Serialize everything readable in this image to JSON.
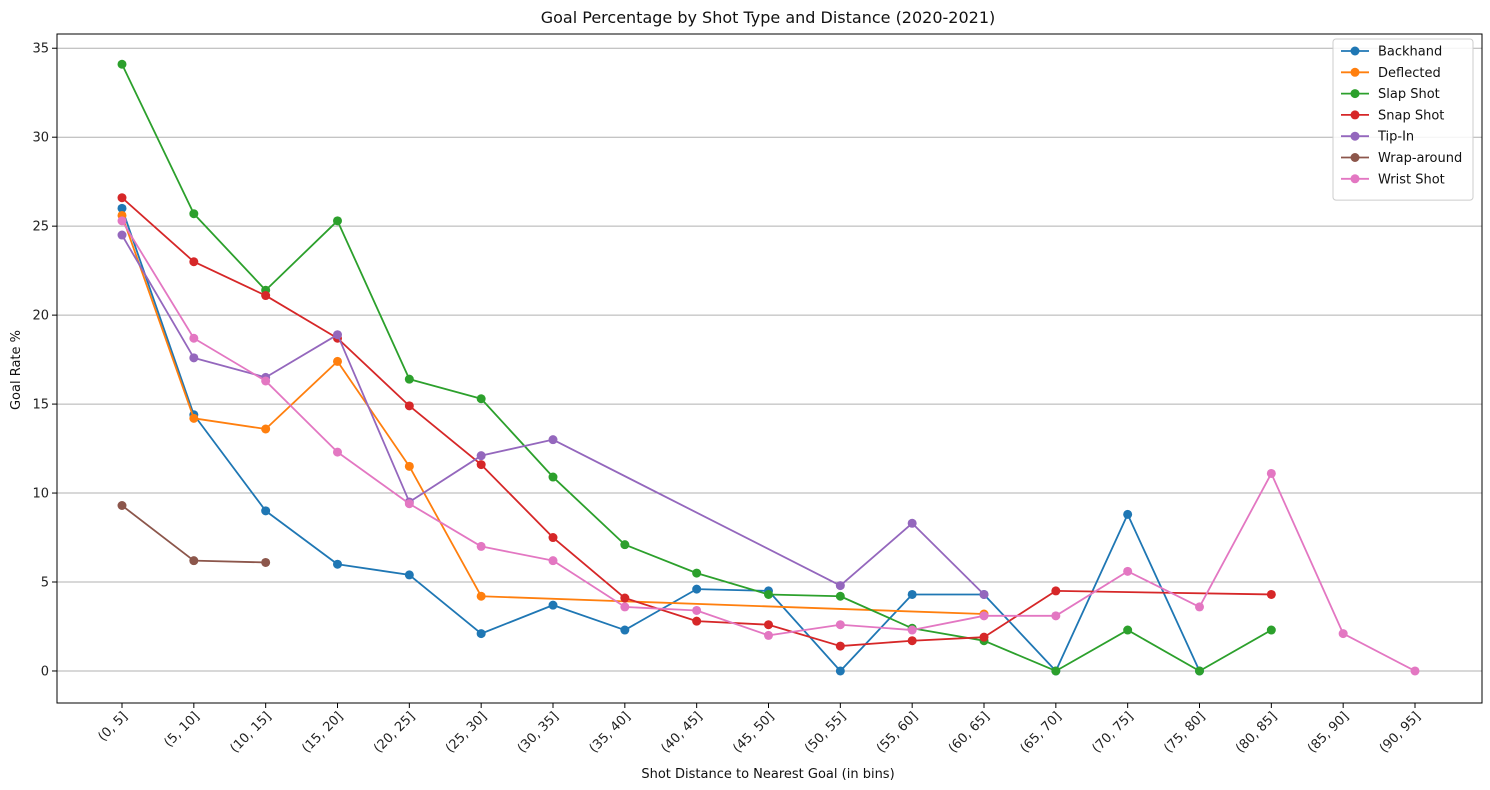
{
  "chart_data": {
    "type": "line",
    "title": "Goal Percentage by Shot Type and Distance (2020-2021)",
    "xlabel": "Shot Distance to Nearest Goal (in bins)",
    "ylabel": "Goal Rate %",
    "ylim": [
      -1.8,
      35.8
    ],
    "yticks": [
      0,
      5,
      10,
      15,
      20,
      25,
      30,
      35
    ],
    "grid": "horizontal",
    "legend_position": "top-right",
    "categories": [
      "(0, 5]",
      "(5, 10]",
      "(10, 15]",
      "(15, 20]",
      "(20, 25]",
      "(25, 30]",
      "(30, 35]",
      "(35, 40]",
      "(40, 45]",
      "(45, 50]",
      "(50, 55]",
      "(55, 60]",
      "(60, 65]",
      "(65, 70]",
      "(70, 75]",
      "(75, 80]",
      "(80, 85]",
      "(85, 90]",
      "(90, 95]"
    ],
    "series": [
      {
        "name": "Backhand",
        "color": "#1f77b4",
        "values": [
          26.0,
          14.4,
          9.0,
          6.0,
          5.4,
          2.1,
          3.7,
          2.3,
          4.6,
          4.5,
          0.0,
          4.3,
          4.3,
          0.0,
          8.8,
          0.0,
          null,
          null,
          null
        ]
      },
      {
        "name": "Deflected",
        "color": "#ff7f0e",
        "values": [
          25.6,
          14.2,
          13.6,
          17.4,
          11.5,
          4.2,
          null,
          null,
          null,
          null,
          null,
          null,
          3.2,
          null,
          null,
          null,
          null,
          null,
          null
        ]
      },
      {
        "name": "Slap Shot",
        "color": "#2ca02c",
        "values": [
          34.1,
          25.7,
          21.4,
          25.3,
          16.4,
          15.3,
          10.9,
          7.1,
          5.5,
          4.3,
          4.2,
          2.4,
          1.7,
          0.0,
          2.3,
          0.0,
          2.3,
          null,
          null
        ]
      },
      {
        "name": "Snap Shot",
        "color": "#d62728",
        "values": [
          26.6,
          23.0,
          21.1,
          18.7,
          14.9,
          11.6,
          7.5,
          4.1,
          2.8,
          2.6,
          1.4,
          1.7,
          1.9,
          4.5,
          null,
          null,
          4.3,
          null,
          null
        ]
      },
      {
        "name": "Tip-In",
        "color": "#9467bd",
        "values": [
          24.5,
          17.6,
          16.5,
          18.9,
          9.5,
          12.1,
          13.0,
          null,
          null,
          null,
          4.8,
          8.3,
          4.3,
          null,
          null,
          null,
          null,
          null,
          null
        ]
      },
      {
        "name": "Wrap-around",
        "color": "#8c564b",
        "values": [
          9.3,
          6.2,
          6.1,
          null,
          null,
          null,
          null,
          null,
          null,
          null,
          null,
          null,
          null,
          null,
          null,
          null,
          null,
          null,
          null
        ]
      },
      {
        "name": "Wrist Shot",
        "color": "#e377c2",
        "values": [
          25.3,
          18.7,
          16.3,
          12.3,
          9.4,
          7.0,
          6.2,
          3.6,
          3.4,
          2.0,
          2.6,
          2.3,
          3.1,
          3.1,
          5.6,
          3.6,
          11.1,
          2.1,
          0.0
        ]
      }
    ]
  }
}
